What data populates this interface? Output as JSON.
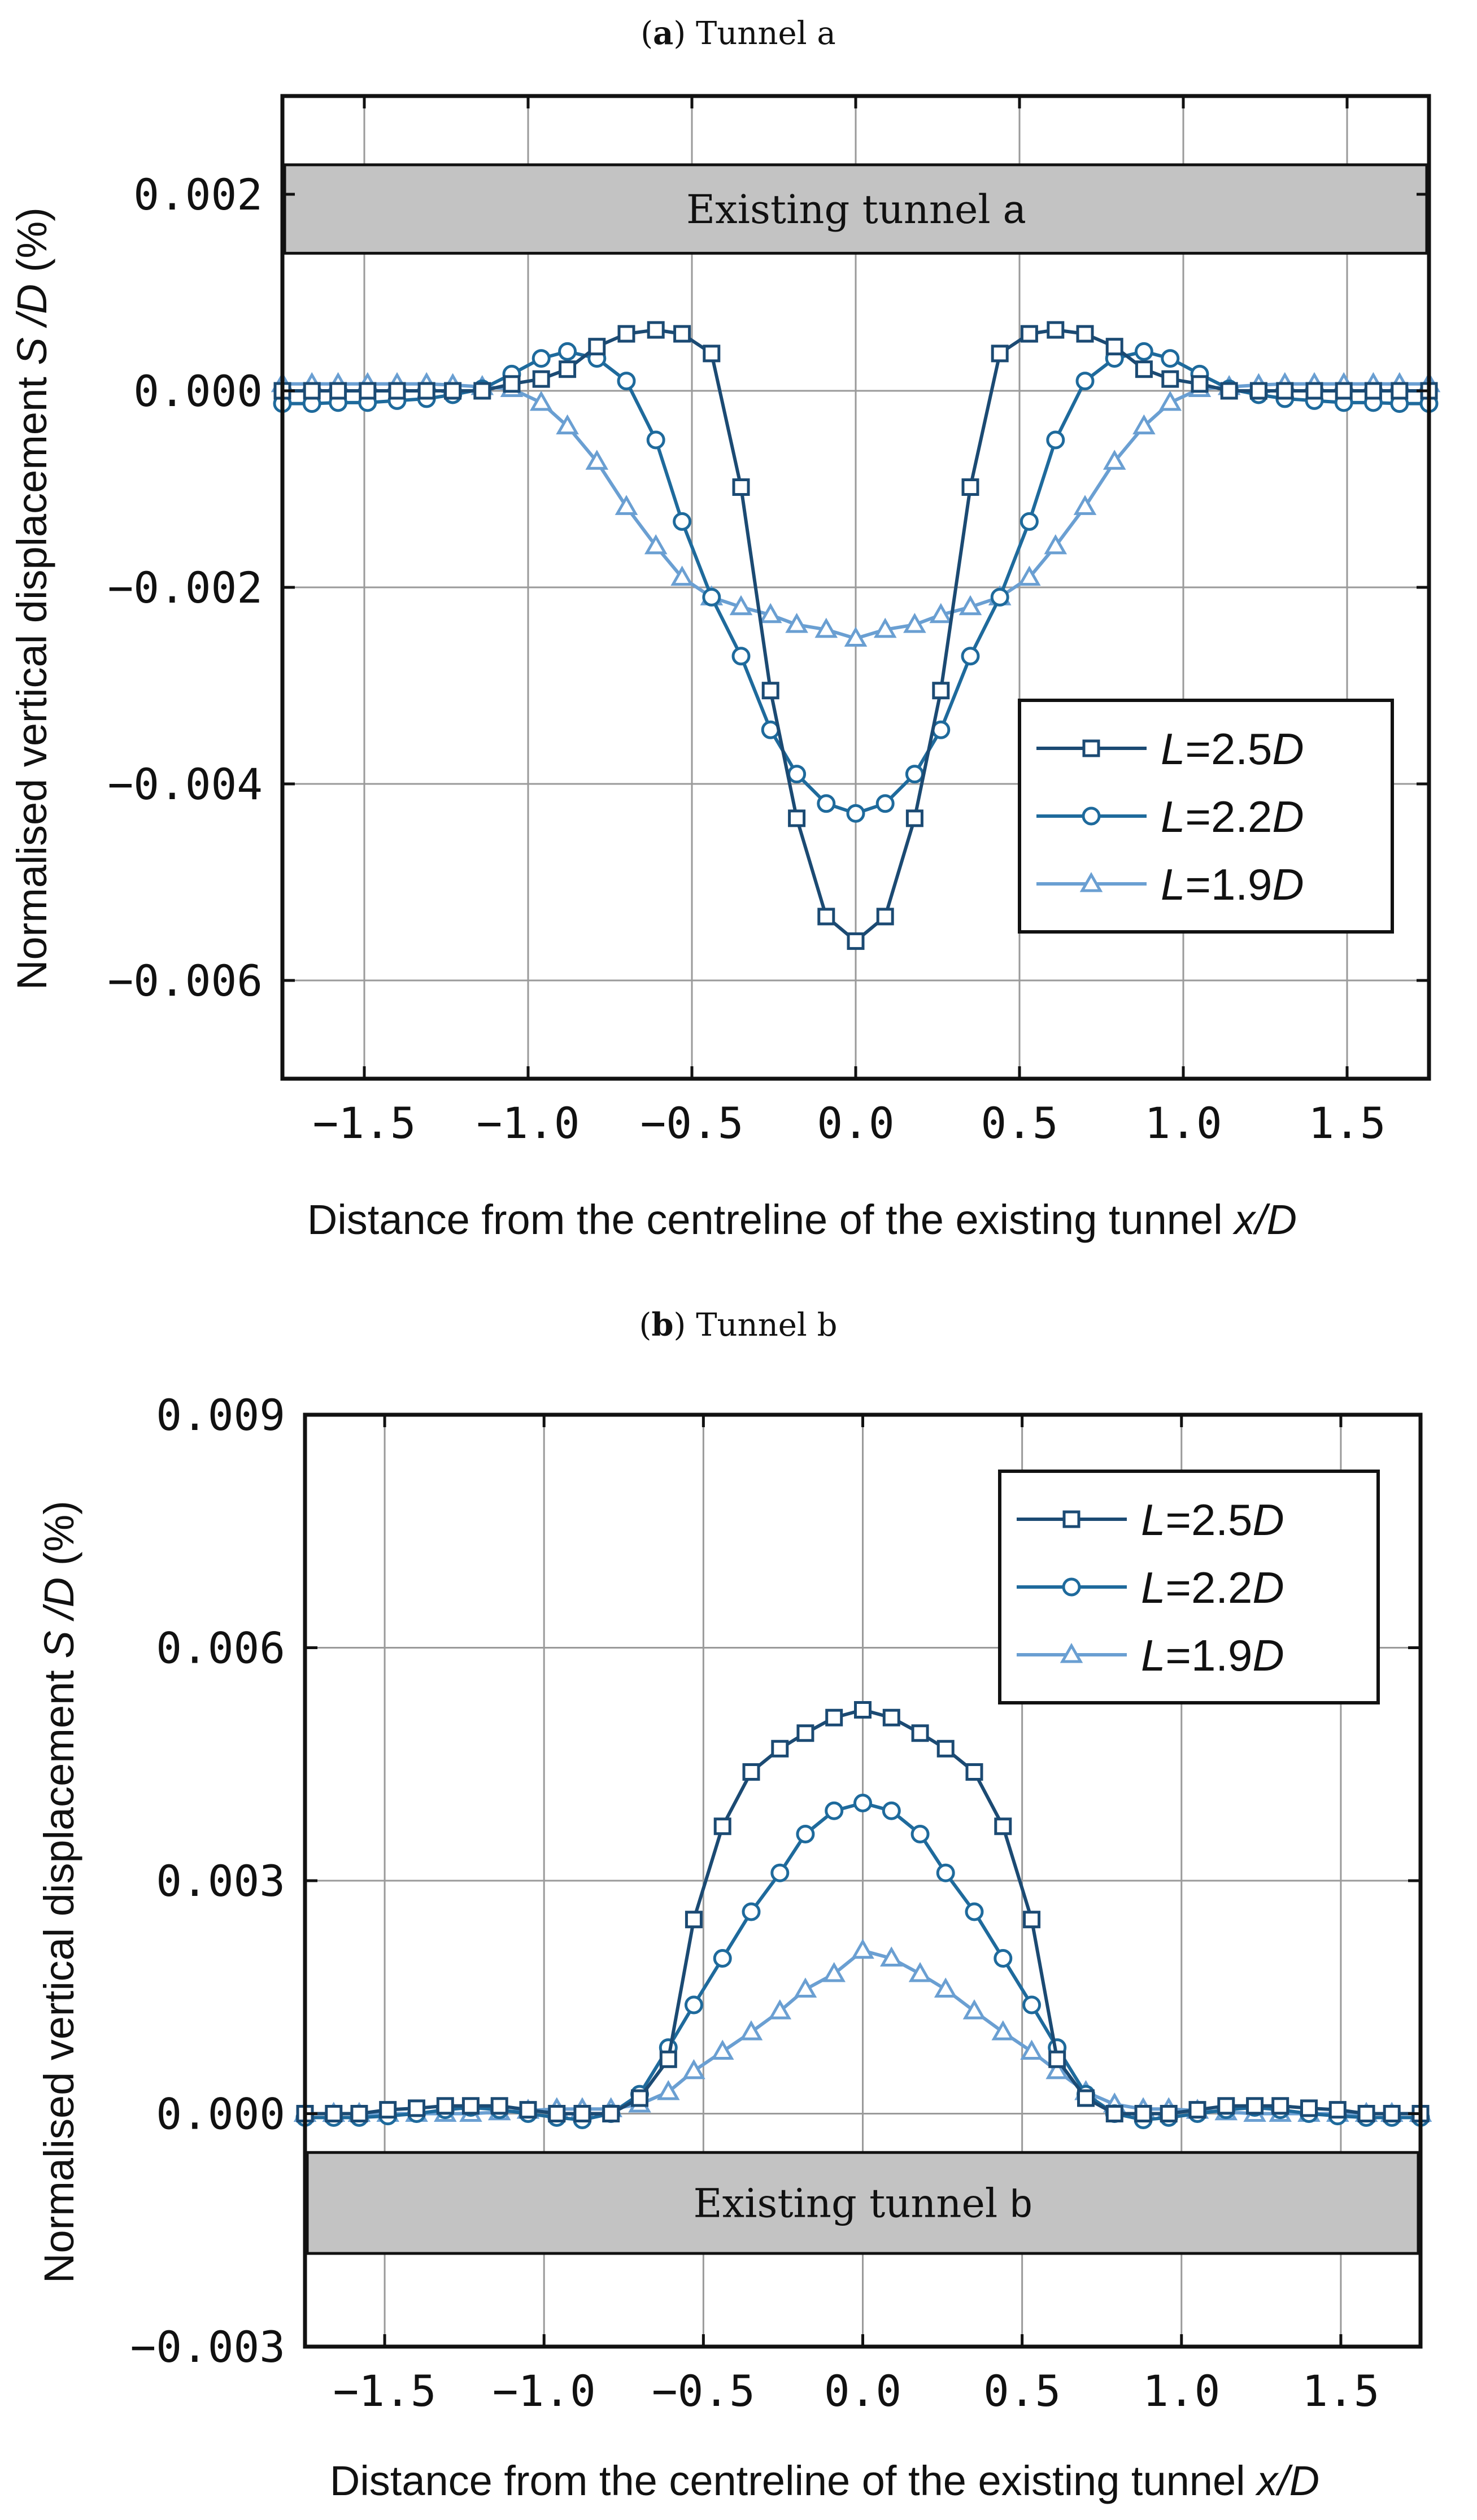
{
  "chart_data": [
    {
      "type": "line",
      "title_prefix": "a",
      "title_text": "Tunnel a",
      "xlabel": "Distance from the centreline of the existing tunnel ",
      "xlabel_italic": "x/D",
      "ylabel": "Normalised vertical displacement ",
      "ylabel_italic": "S /D",
      "ylabel_suffix": " (%)",
      "xlim": [
        -1.75,
        1.75
      ],
      "ylim": [
        -0.007,
        0.003
      ],
      "xticks": [
        -1.5,
        -1.0,
        -0.5,
        0.0,
        0.5,
        1.0,
        1.5
      ],
      "xtick_labels": [
        "−1.5",
        "−1.0",
        "−0.5",
        "0.0",
        "0.5",
        "1.0",
        "1.5"
      ],
      "yticks": [
        -0.006,
        -0.004,
        -0.002,
        0.0,
        0.002
      ],
      "ytick_labels": [
        "−0.006",
        "−0.004",
        "−0.002",
        "0.000",
        "0.002"
      ],
      "grid": true,
      "band": {
        "y_range": [
          0.0014,
          0.0023
        ],
        "label": "Existing tunnel ",
        "label_bold": "a"
      },
      "legend_position": "center-right",
      "series": [
        {
          "name": "L=2.5D",
          "name_italic_L": "L",
          "name_value": "=2.5",
          "name_italic_D": "D",
          "marker": "square",
          "color": "#1b4a73",
          "x": [
            -1.75,
            -1.66,
            -1.58,
            -1.49,
            -1.4,
            -1.31,
            -1.23,
            -1.14,
            -1.05,
            -0.96,
            -0.88,
            -0.79,
            -0.7,
            -0.61,
            -0.53,
            -0.44,
            -0.35,
            -0.26,
            -0.18,
            -0.09,
            0.0,
            0.09,
            0.18,
            0.26,
            0.35,
            0.44,
            0.53,
            0.61,
            0.7,
            0.79,
            0.88,
            0.96,
            1.05,
            1.14,
            1.23,
            1.31,
            1.4,
            1.49,
            1.58,
            1.66,
            1.75
          ],
          "y": [
            0.0,
            0.0,
            0.0,
            0.0,
            0.0,
            0.0,
            0.0,
            0.0,
            7e-05,
            0.00012,
            0.00022,
            0.00045,
            0.00058,
            0.00062,
            0.00058,
            0.00038,
            -0.00098,
            -0.00305,
            -0.00435,
            -0.00535,
            -0.0056,
            -0.00535,
            -0.00435,
            -0.00305,
            -0.00098,
            0.00038,
            0.00058,
            0.00062,
            0.00058,
            0.00045,
            0.00022,
            0.00012,
            7e-05,
            0.0,
            0.0,
            0.0,
            0.0,
            0.0,
            0.0,
            0.0,
            0.0
          ]
        },
        {
          "name": "L=2.2D",
          "name_italic_L": "L",
          "name_value": "=2.2",
          "name_italic_D": "D",
          "marker": "circle",
          "color": "#1e6a9c",
          "x": [
            -1.75,
            -1.66,
            -1.58,
            -1.49,
            -1.4,
            -1.31,
            -1.23,
            -1.14,
            -1.05,
            -0.96,
            -0.88,
            -0.79,
            -0.7,
            -0.61,
            -0.53,
            -0.44,
            -0.35,
            -0.26,
            -0.18,
            -0.09,
            0.0,
            0.09,
            0.18,
            0.26,
            0.35,
            0.44,
            0.53,
            0.61,
            0.7,
            0.79,
            0.88,
            0.96,
            1.05,
            1.14,
            1.23,
            1.31,
            1.4,
            1.49,
            1.58,
            1.66,
            1.75
          ],
          "y": [
            -0.00013,
            -0.00013,
            -0.00012,
            -0.00012,
            -0.0001,
            -8e-05,
            -4e-05,
            2e-05,
            0.00017,
            0.00033,
            0.0004,
            0.00033,
            0.0001,
            -0.0005,
            -0.00133,
            -0.0021,
            -0.0027,
            -0.00345,
            -0.0039,
            -0.0042,
            -0.0043,
            -0.0042,
            -0.0039,
            -0.00345,
            -0.0027,
            -0.0021,
            -0.00133,
            -0.0005,
            0.0001,
            0.00033,
            0.0004,
            0.00033,
            0.00017,
            2e-05,
            -4e-05,
            -8e-05,
            -0.0001,
            -0.00012,
            -0.00012,
            -0.00013,
            -0.00013
          ]
        },
        {
          "name": "L=1.9D",
          "name_italic_L": "L",
          "name_value": "=1.9",
          "name_italic_D": "D",
          "marker": "triangle",
          "color": "#6a9fd2",
          "x": [
            -1.75,
            -1.66,
            -1.58,
            -1.49,
            -1.4,
            -1.31,
            -1.23,
            -1.14,
            -1.05,
            -0.96,
            -0.88,
            -0.79,
            -0.7,
            -0.61,
            -0.53,
            -0.44,
            -0.35,
            -0.26,
            -0.18,
            -0.09,
            0.0,
            0.09,
            0.18,
            0.26,
            0.35,
            0.44,
            0.53,
            0.61,
            0.7,
            0.79,
            0.88,
            0.96,
            1.05,
            1.14,
            1.23,
            1.31,
            1.4,
            1.49,
            1.58,
            1.66,
            1.75
          ],
          "y": [
            7e-05,
            7e-05,
            7e-05,
            7e-05,
            7e-05,
            7e-05,
            6e-05,
            4e-05,
            2e-05,
            -0.00012,
            -0.00036,
            -0.00072,
            -0.00118,
            -0.00158,
            -0.0019,
            -0.0021,
            -0.0022,
            -0.00228,
            -0.00238,
            -0.00243,
            -0.00252,
            -0.00243,
            -0.00238,
            -0.00228,
            -0.0022,
            -0.0021,
            -0.0019,
            -0.00158,
            -0.00118,
            -0.00072,
            -0.00036,
            -0.00012,
            2e-05,
            4e-05,
            6e-05,
            7e-05,
            7e-05,
            7e-05,
            7e-05,
            7e-05,
            7e-05
          ]
        }
      ]
    },
    {
      "type": "line",
      "title_prefix": "b",
      "title_text": "Tunnel b",
      "xlabel": "Distance from the centreline of the existing tunnel ",
      "xlabel_italic": "x/D",
      "ylabel": "Normalised vertical displacement ",
      "ylabel_italic": "S /D",
      "ylabel_suffix": " (%)",
      "xlim": [
        -1.75,
        1.75
      ],
      "ylim": [
        -0.003,
        0.009
      ],
      "xticks": [
        -1.5,
        -1.0,
        -0.5,
        0.0,
        0.5,
        1.0,
        1.5
      ],
      "xtick_labels": [
        "−1.5",
        "−1.0",
        "−0.5",
        "0.0",
        "0.5",
        "1.0",
        "1.5"
      ],
      "yticks": [
        -0.003,
        0.0,
        0.003,
        0.006,
        0.009
      ],
      "ytick_labels": [
        "−0.003",
        "0.000",
        "0.003",
        "0.006",
        "0.009"
      ],
      "grid": true,
      "band": {
        "y_range": [
          -0.0018,
          -0.0005
        ],
        "label": "Existing tunnel ",
        "label_bold": "b"
      },
      "legend_position": "top-right",
      "series": [
        {
          "name": "L=2.5D",
          "name_italic_L": "L",
          "name_value": "=2.5",
          "name_italic_D": "D",
          "marker": "square",
          "color": "#1b4a73",
          "x": [
            -1.75,
            -1.66,
            -1.58,
            -1.49,
            -1.4,
            -1.31,
            -1.23,
            -1.14,
            -1.05,
            -0.96,
            -0.88,
            -0.79,
            -0.7,
            -0.61,
            -0.53,
            -0.44,
            -0.35,
            -0.26,
            -0.18,
            -0.09,
            0.0,
            0.09,
            0.18,
            0.26,
            0.35,
            0.44,
            0.53,
            0.61,
            0.7,
            0.79,
            0.88,
            0.96,
            1.05,
            1.14,
            1.23,
            1.31,
            1.4,
            1.49,
            1.58,
            1.66,
            1.75
          ],
          "y": [
            0.0,
            0.0,
            0.0,
            5e-05,
            7e-05,
            0.0001,
            0.0001,
            0.0001,
            5e-05,
            0.0,
            0.0,
            0.0,
            0.0002,
            0.0007,
            0.0025,
            0.0037,
            0.0044,
            0.0047,
            0.0049,
            0.0051,
            0.0052,
            0.0051,
            0.0049,
            0.0047,
            0.0044,
            0.0037,
            0.0025,
            0.0007,
            0.0002,
            0.0,
            0.0,
            0.0,
            5e-05,
            0.0001,
            0.0001,
            0.0001,
            7e-05,
            5e-05,
            0.0,
            0.0,
            0.0
          ]
        },
        {
          "name": "L=2.2D",
          "name_italic_L": "L",
          "name_value": "=2.2",
          "name_italic_D": "D",
          "marker": "circle",
          "color": "#1e6a9c",
          "x": [
            -1.75,
            -1.66,
            -1.58,
            -1.49,
            -1.4,
            -1.31,
            -1.23,
            -1.14,
            -1.05,
            -0.96,
            -0.88,
            -0.79,
            -0.7,
            -0.61,
            -0.53,
            -0.44,
            -0.35,
            -0.26,
            -0.18,
            -0.09,
            0.0,
            0.09,
            0.18,
            0.26,
            0.35,
            0.44,
            0.53,
            0.61,
            0.7,
            0.79,
            0.88,
            0.96,
            1.05,
            1.14,
            1.23,
            1.31,
            1.4,
            1.49,
            1.58,
            1.66,
            1.75
          ],
          "y": [
            -5e-05,
            -5e-05,
            -5e-05,
            -3e-05,
            0.0,
            5e-05,
            8e-05,
            5e-05,
            0.0,
            -5e-05,
            -8e-05,
            0.0,
            0.00025,
            0.00085,
            0.0014,
            0.002,
            0.0026,
            0.0031,
            0.0036,
            0.0039,
            0.004,
            0.0039,
            0.0036,
            0.0031,
            0.0026,
            0.002,
            0.0014,
            0.00085,
            0.00025,
            0.0,
            -8e-05,
            -5e-05,
            0.0,
            5e-05,
            8e-05,
            5e-05,
            0.0,
            -3e-05,
            -5e-05,
            -5e-05,
            -5e-05
          ]
        },
        {
          "name": "L=1.9D",
          "name_italic_L": "L",
          "name_value": "=1.9",
          "name_italic_D": "D",
          "marker": "triangle",
          "color": "#6a9fd2",
          "x": [
            -1.75,
            -1.66,
            -1.58,
            -1.49,
            -1.4,
            -1.31,
            -1.23,
            -1.14,
            -1.05,
            -0.96,
            -0.88,
            -0.79,
            -0.7,
            -0.61,
            -0.53,
            -0.44,
            -0.35,
            -0.26,
            -0.18,
            -0.09,
            0.0,
            0.09,
            0.18,
            0.26,
            0.35,
            0.44,
            0.53,
            0.61,
            0.7,
            0.79,
            0.88,
            0.96,
            1.05,
            1.14,
            1.23,
            1.31,
            1.4,
            1.49,
            1.58,
            1.66,
            1.75
          ],
          "y": [
            0.0,
            0.0,
            0.0,
            0.0,
            0.0,
            0.0,
            0.0,
            2e-05,
            4e-05,
            6e-05,
            6e-05,
            6e-05,
            0.00012,
            0.00028,
            0.00055,
            0.0008,
            0.00105,
            0.00132,
            0.0016,
            0.0018,
            0.0021,
            0.002,
            0.0018,
            0.0016,
            0.00132,
            0.00105,
            0.0008,
            0.00055,
            0.00028,
            0.00012,
            6e-05,
            6e-05,
            4e-05,
            2e-05,
            0.0,
            0.0,
            0.0,
            0.0,
            0.0,
            0.0,
            0.0
          ]
        }
      ]
    }
  ]
}
